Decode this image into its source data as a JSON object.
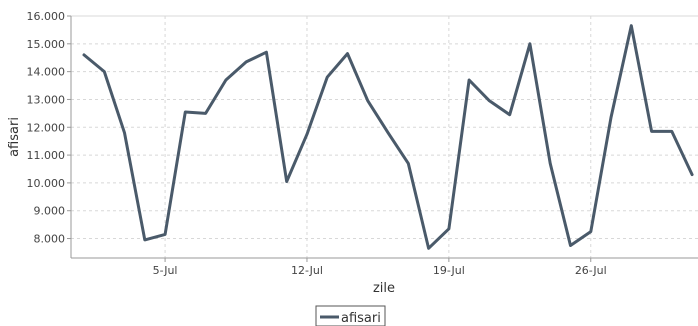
{
  "chart_data": {
    "type": "line",
    "xlabel": "zile",
    "ylabel": "afisari",
    "ylim": [
      7300,
      16000
    ],
    "y_ticks": [
      {
        "value": 8000,
        "label": "8.000"
      },
      {
        "value": 9000,
        "label": "9.000"
      },
      {
        "value": 10000,
        "label": "10.000"
      },
      {
        "value": 11000,
        "label": "11.000"
      },
      {
        "value": 12000,
        "label": "12.000"
      },
      {
        "value": 13000,
        "label": "13.000"
      },
      {
        "value": 14000,
        "label": "14.000"
      },
      {
        "value": 15000,
        "label": "15.000"
      },
      {
        "value": 16000,
        "label": "16.000"
      }
    ],
    "x_ticks": [
      {
        "label": "5-Jul"
      },
      {
        "label": "12-Jul"
      },
      {
        "label": "19-Jul"
      },
      {
        "label": "26-Jul"
      }
    ],
    "x": [
      "1-Jul",
      "2-Jul",
      "3-Jul",
      "4-Jul",
      "5-Jul",
      "6-Jul",
      "7-Jul",
      "8-Jul",
      "9-Jul",
      "10-Jul",
      "11-Jul",
      "12-Jul",
      "13-Jul",
      "14-Jul",
      "15-Jul",
      "16-Jul",
      "17-Jul",
      "18-Jul",
      "19-Jul",
      "20-Jul",
      "21-Jul",
      "22-Jul",
      "23-Jul",
      "24-Jul",
      "25-Jul",
      "26-Jul",
      "27-Jul",
      "28-Jul",
      "29-Jul",
      "30-Jul",
      "31-Jul"
    ],
    "grid": true,
    "legend_position": "bottom-center",
    "series": [
      {
        "name": "afisari",
        "color": "#4a5a6a",
        "values": [
          14600,
          14000,
          11800,
          7950,
          8150,
          12550,
          12500,
          13700,
          14350,
          14700,
          10050,
          11750,
          13800,
          14650,
          12950,
          11800,
          10700,
          7650,
          8350,
          13700,
          12950,
          12450,
          15000,
          10700,
          7750,
          8250,
          12350,
          15650,
          11850,
          11850,
          10300
        ]
      }
    ]
  }
}
